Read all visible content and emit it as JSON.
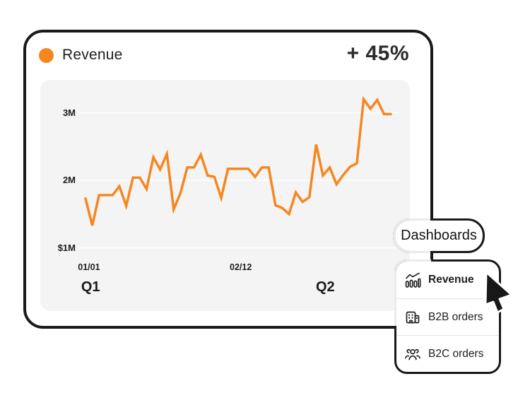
{
  "colors": {
    "accent": "#F6861F",
    "ink": "#1f1f1f",
    "outline": "#1a1a1a",
    "panel_bg": "#f4f4f4",
    "gridline": "#fbfbfb"
  },
  "header": {
    "title": "Revenue",
    "delta": "+ 45%"
  },
  "chart_data": {
    "type": "line",
    "title": "Revenue",
    "unit": "millions",
    "line_color": "#F6861F",
    "grid": true,
    "ylim": [
      0.8,
      3.45
    ],
    "yticks": [
      {
        "label": "3M",
        "value": 3
      },
      {
        "label": "2M",
        "value": 2
      },
      {
        "label": "$1M",
        "value": 1
      }
    ],
    "xticks": [
      {
        "label": "01/01",
        "pos": 0.035
      },
      {
        "label": "02/12",
        "pos": 0.507
      }
    ],
    "quarter_labels": [
      {
        "label": "Q1",
        "pos": 0.04
      },
      {
        "label": "Q2",
        "pos": 0.77
      }
    ],
    "series": [
      {
        "name": "Revenue",
        "values_millions": [
          1.73,
          1.33,
          1.78,
          1.78,
          1.78,
          1.91,
          1.62,
          2.04,
          2.04,
          1.87,
          2.34,
          2.16,
          2.39,
          1.57,
          1.81,
          2.19,
          2.19,
          2.38,
          2.07,
          2.05,
          1.74,
          2.17,
          2.17,
          2.17,
          2.17,
          2.05,
          2.19,
          2.19,
          1.63,
          1.59,
          1.5,
          1.82,
          1.68,
          1.75,
          2.53,
          2.07,
          2.19,
          1.94,
          2.08,
          2.2,
          2.25,
          3.2,
          3.06,
          3.19,
          2.98,
          2.98
        ]
      }
    ]
  },
  "dashboards_popover": {
    "trigger_label": "Dashboards",
    "items": [
      {
        "label": "Revenue",
        "icon": "chart-trend-icon",
        "selected": true
      },
      {
        "label": "B2B orders",
        "icon": "building-icon",
        "selected": false
      },
      {
        "label": "B2C orders",
        "icon": "people-icon",
        "selected": false
      }
    ]
  }
}
